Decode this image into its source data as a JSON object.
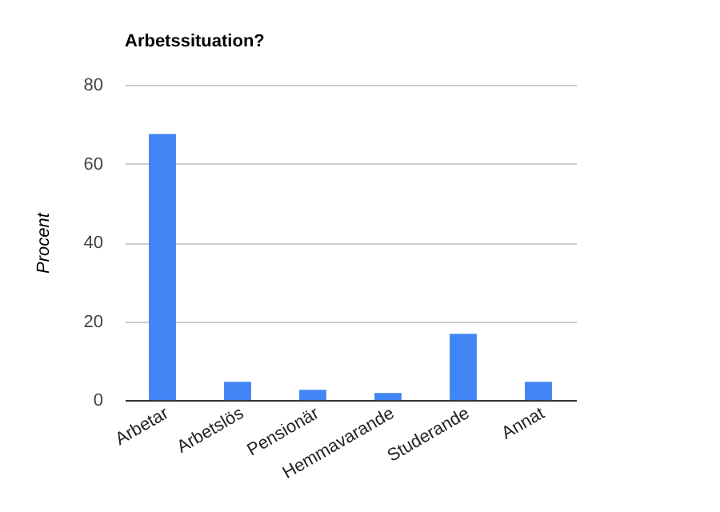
{
  "chart_data": {
    "type": "bar",
    "title": "Arbetssituation?",
    "ylabel": "Procent",
    "categories": [
      "Arbetar",
      "Arbetslös",
      "Pensionär",
      "Hemmavarande",
      "Studerande",
      "Annat"
    ],
    "values": [
      67.5,
      4.6,
      2.6,
      1.8,
      16.8,
      4.6
    ],
    "color": "#4285f4",
    "ylim": [
      0,
      80
    ],
    "yticks": [
      0,
      20,
      40,
      60,
      80
    ],
    "grid": "y",
    "legend": false
  }
}
